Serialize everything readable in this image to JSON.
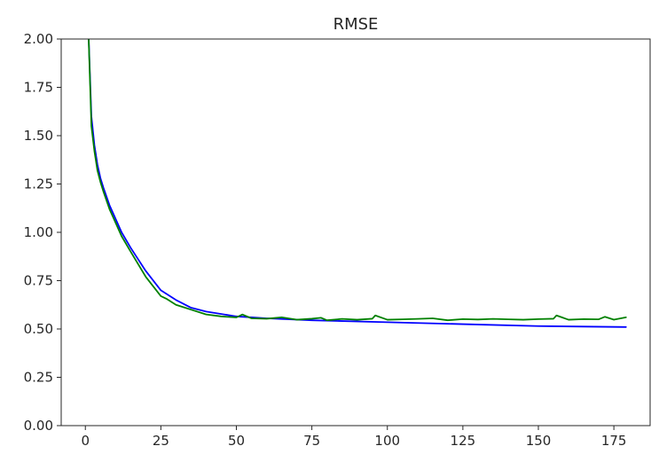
{
  "chart_data": {
    "type": "line",
    "title": "RMSE",
    "xlabel": "",
    "ylabel": "",
    "xlim": [
      -8,
      187
    ],
    "ylim": [
      0,
      2.0
    ],
    "xticks": [
      0,
      25,
      50,
      75,
      100,
      125,
      150,
      175
    ],
    "xtick_labels": [
      "0",
      "25",
      "50",
      "75",
      "100",
      "125",
      "150",
      "175"
    ],
    "yticks": [
      0,
      0.25,
      0.5,
      0.75,
      1.0,
      1.25,
      1.5,
      1.75,
      2.0
    ],
    "ytick_labels": [
      "0.00",
      "0.25",
      "0.50",
      "0.75",
      "1.00",
      "1.25",
      "1.50",
      "1.75",
      "2.00"
    ],
    "grid": false,
    "legend": "none",
    "series": [
      {
        "color": "#0000ff",
        "x": [
          0,
          1,
          2,
          3,
          4,
          5,
          6,
          8,
          10,
          12,
          15,
          20,
          25,
          30,
          35,
          40,
          50,
          60,
          75,
          100,
          125,
          150,
          179
        ],
        "y": [
          4.0,
          2.05,
          1.6,
          1.45,
          1.35,
          1.28,
          1.23,
          1.14,
          1.07,
          1.0,
          0.92,
          0.8,
          0.7,
          0.65,
          0.61,
          0.59,
          0.565,
          0.555,
          0.545,
          0.535,
          0.525,
          0.515,
          0.51
        ]
      },
      {
        "color": "#008000",
        "x": [
          0,
          1,
          2,
          3,
          4,
          5,
          6,
          8,
          10,
          12,
          15,
          20,
          25,
          27,
          30,
          33,
          35,
          40,
          45,
          50,
          52,
          55,
          60,
          65,
          70,
          75,
          78,
          80,
          85,
          90,
          95,
          96,
          100,
          105,
          110,
          115,
          120,
          125,
          130,
          135,
          140,
          145,
          150,
          155,
          156,
          160,
          165,
          170,
          172,
          175,
          179
        ],
        "y": [
          4.0,
          2.05,
          1.55,
          1.42,
          1.32,
          1.26,
          1.21,
          1.12,
          1.05,
          0.98,
          0.9,
          0.77,
          0.67,
          0.655,
          0.625,
          0.61,
          0.6,
          0.575,
          0.565,
          0.56,
          0.575,
          0.555,
          0.553,
          0.56,
          0.548,
          0.553,
          0.558,
          0.545,
          0.552,
          0.548,
          0.553,
          0.57,
          0.548,
          0.55,
          0.552,
          0.555,
          0.545,
          0.551,
          0.549,
          0.552,
          0.55,
          0.548,
          0.551,
          0.553,
          0.57,
          0.548,
          0.551,
          0.55,
          0.563,
          0.548,
          0.56
        ]
      }
    ]
  }
}
